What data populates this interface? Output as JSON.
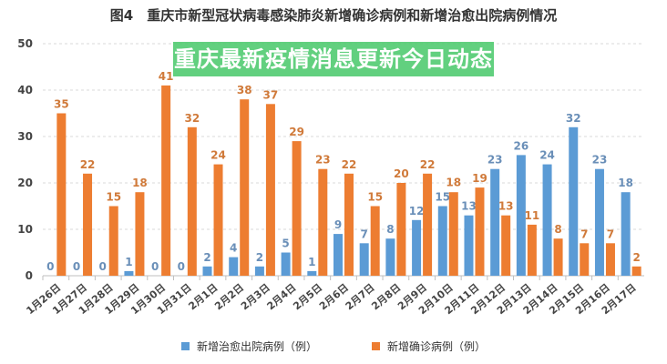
{
  "chart_data": {
    "type": "bar",
    "title": "图4　重庆市新型冠状病毒感染肺炎新增确诊病例和新增治愈出院病例情况",
    "categories": [
      "1月26日",
      "1月27日",
      "1月28日",
      "1月29日",
      "1月30日",
      "1月31日",
      "2月1日",
      "2月2日",
      "2月3日",
      "2月4日",
      "2月5日",
      "2月6日",
      "2月7日",
      "2月8日",
      "2月9日",
      "2月10日",
      "2月11日",
      "2月12日",
      "2月13日",
      "2月14日",
      "2月15日",
      "2月16日",
      "2月17日"
    ],
    "series": [
      {
        "name": "新增治愈出院病例（例）",
        "color": "#5b9bd5",
        "values": [
          0,
          0,
          0,
          1,
          0,
          0,
          2,
          4,
          2,
          5,
          1,
          9,
          7,
          8,
          12,
          15,
          13,
          23,
          26,
          24,
          32,
          23,
          18
        ]
      },
      {
        "name": "新增确诊病例（例）",
        "color": "#ed7d31",
        "values": [
          35,
          22,
          15,
          18,
          41,
          32,
          24,
          38,
          37,
          29,
          23,
          22,
          15,
          20,
          22,
          18,
          19,
          13,
          11,
          8,
          7,
          7,
          2
        ]
      }
    ],
    "ylim": [
      0,
      50
    ],
    "yticks": [
      0,
      10,
      20,
      30,
      40,
      50
    ],
    "grid": true,
    "legend": "bottom"
  },
  "banner": {
    "text": "重庆最新疫情消息更新今日动态",
    "color": "#46c869"
  }
}
